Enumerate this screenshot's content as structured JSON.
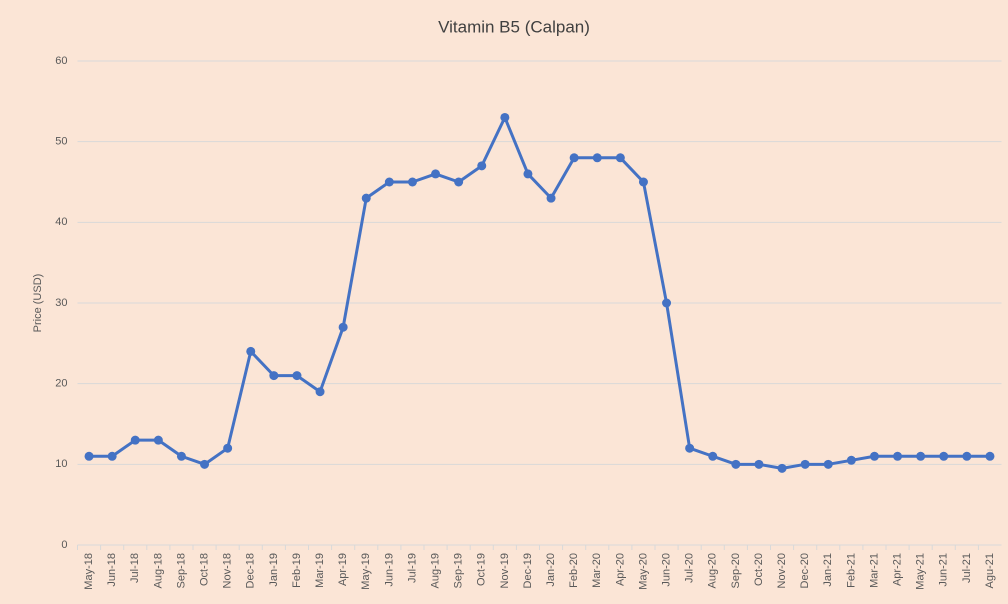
{
  "chart_data": {
    "type": "line",
    "title": "Vitamin B5 (Calpan)",
    "y_label": "Price (USD)",
    "categories": [
      "May-18",
      "Jun-18",
      "Jul-18",
      "Aug-18",
      "Sep-18",
      "Oct-18",
      "Nov-18",
      "Dec-18",
      "Jan-19",
      "Feb-19",
      "Mar-19",
      "Apr-19",
      "May-19",
      "Jun-19",
      "Jul-19",
      "Aug-19",
      "Sep-19",
      "Oct-19",
      "Nov-19",
      "Dec-19",
      "Jan-20",
      "Feb-20",
      "Mar-20",
      "Apr-20",
      "May-20",
      "Jun-20",
      "Jul-20",
      "Aug-20",
      "Sep-20",
      "Oct-20",
      "Nov-20",
      "Dec-20",
      "Jan-21",
      "Feb-21",
      "Mar-21",
      "Apr-21",
      "May-21",
      "Jun-21",
      "Jul-21",
      "Agu-21"
    ],
    "series": [
      {
        "name": "Price",
        "color": "#4472c4",
        "values": [
          11,
          11,
          13,
          13,
          11,
          10,
          12,
          24,
          21,
          21,
          19,
          27,
          43,
          45,
          45,
          46,
          45,
          47,
          53,
          46,
          43,
          48,
          48,
          48,
          45,
          30,
          12,
          11,
          10,
          10,
          9.5,
          10,
          10,
          10.5,
          11,
          11,
          11,
          11,
          11,
          11
        ]
      }
    ],
    "ylim": [
      0,
      60
    ],
    "yticks": [
      0,
      10,
      20,
      30,
      40,
      50,
      60
    ],
    "grid": true
  }
}
